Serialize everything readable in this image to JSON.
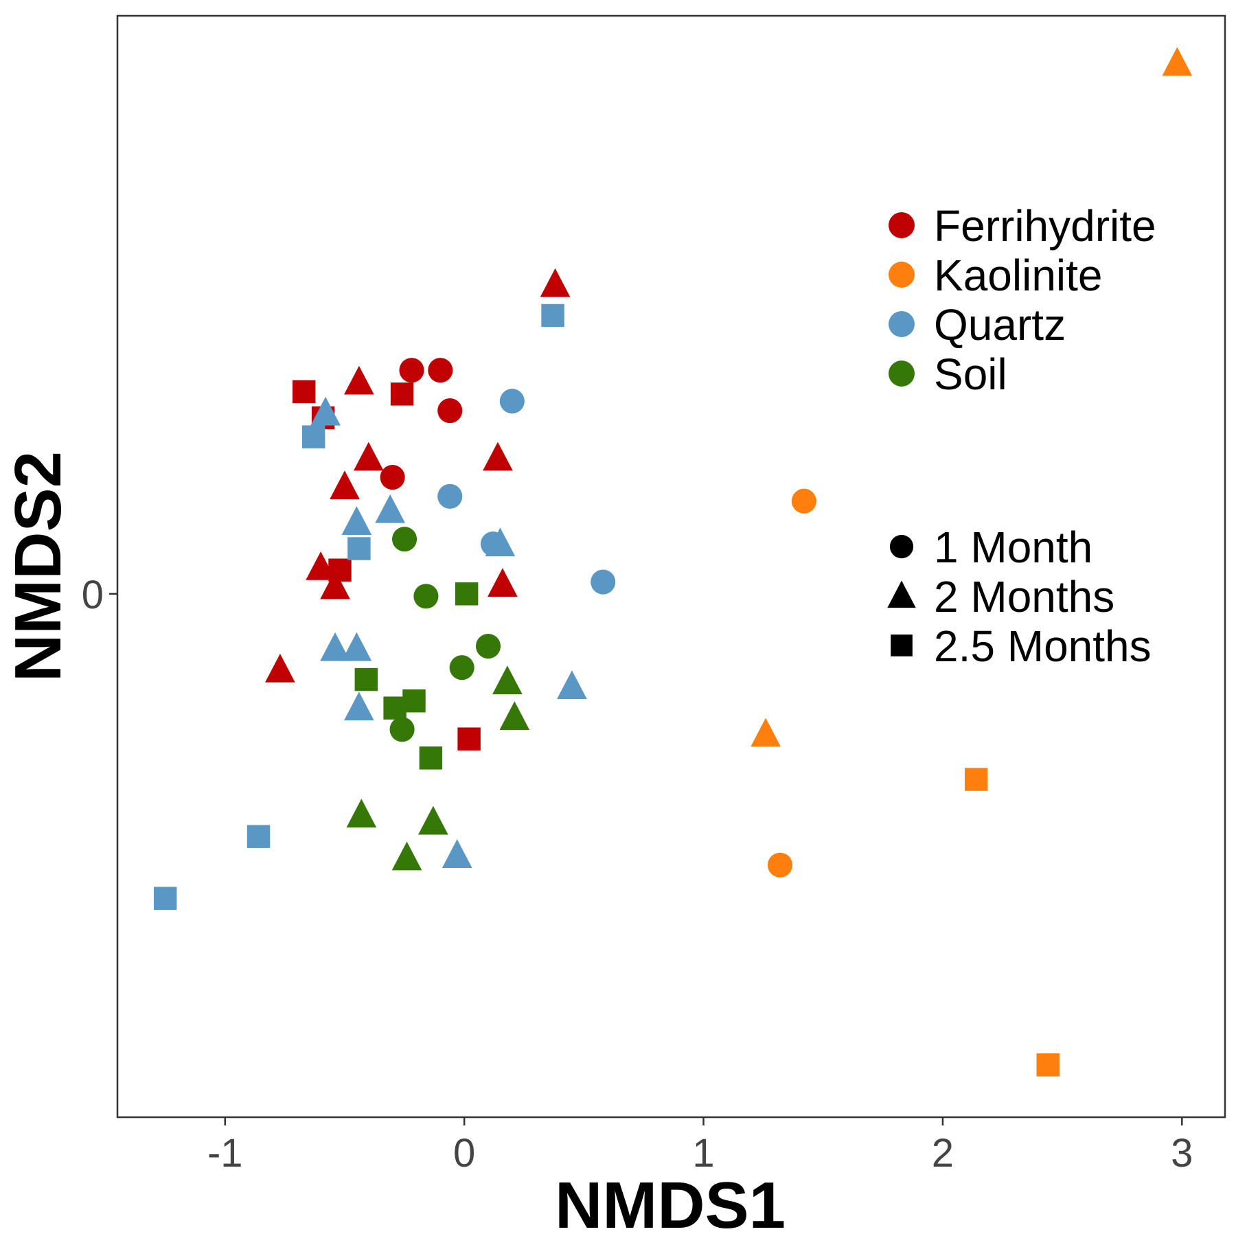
{
  "chart_data": {
    "type": "scatter",
    "title": "",
    "xlabel": "NMDS1",
    "ylabel": "NMDS2",
    "xlim": [
      -1.45,
      3.18
    ],
    "ylim": [
      -2.2,
      2.43
    ],
    "x_ticks": [
      -1,
      0,
      1,
      2,
      3
    ],
    "x_tick_labels": [
      "-1",
      "0",
      "1",
      "2",
      "3"
    ],
    "y_ticks": [
      0
    ],
    "y_tick_labels": [
      "0"
    ],
    "grid": false,
    "legend_placement": "right",
    "color_legend": [
      {
        "label": "Ferrihydrite",
        "color": "#c00000"
      },
      {
        "label": "Kaolinite",
        "color": "#ff7f0e"
      },
      {
        "label": "Quartz",
        "color": "#5b97c5"
      },
      {
        "label": "Soil",
        "color": "#367807"
      }
    ],
    "shape_legend": [
      {
        "label": "1 Month",
        "shape": "circle"
      },
      {
        "label": "2 Months",
        "shape": "triangle"
      },
      {
        "label": "2.5 Months",
        "shape": "square"
      }
    ],
    "series": [
      {
        "color_key": "Ferrihydrite",
        "points": [
          {
            "x": -0.22,
            "y": 0.94,
            "shape": "circle"
          },
          {
            "x": -0.1,
            "y": 0.94,
            "shape": "circle"
          },
          {
            "x": -0.06,
            "y": 0.77,
            "shape": "circle"
          },
          {
            "x": -0.3,
            "y": 0.49,
            "shape": "circle"
          },
          {
            "x": 0.38,
            "y": 1.3,
            "shape": "triangle"
          },
          {
            "x": -0.44,
            "y": 0.89,
            "shape": "triangle"
          },
          {
            "x": -0.4,
            "y": 0.57,
            "shape": "triangle"
          },
          {
            "x": 0.14,
            "y": 0.57,
            "shape": "triangle"
          },
          {
            "x": -0.5,
            "y": 0.45,
            "shape": "triangle"
          },
          {
            "x": -0.6,
            "y": 0.11,
            "shape": "triangle"
          },
          {
            "x": -0.54,
            "y": 0.03,
            "shape": "triangle"
          },
          {
            "x": 0.16,
            "y": 0.04,
            "shape": "triangle"
          },
          {
            "x": -0.77,
            "y": -0.32,
            "shape": "triangle"
          },
          {
            "x": -0.67,
            "y": 0.85,
            "shape": "square"
          },
          {
            "x": -0.26,
            "y": 0.84,
            "shape": "square"
          },
          {
            "x": -0.59,
            "y": 0.74,
            "shape": "square"
          },
          {
            "x": -0.52,
            "y": 0.1,
            "shape": "square"
          },
          {
            "x": 0.02,
            "y": -0.61,
            "shape": "square"
          }
        ]
      },
      {
        "color_key": "Kaolinite",
        "points": [
          {
            "x": 1.42,
            "y": 0.39,
            "shape": "circle"
          },
          {
            "x": 1.32,
            "y": -1.14,
            "shape": "circle"
          },
          {
            "x": 2.98,
            "y": 2.23,
            "shape": "triangle"
          },
          {
            "x": 1.26,
            "y": -0.59,
            "shape": "triangle"
          },
          {
            "x": 2.14,
            "y": -0.78,
            "shape": "square"
          },
          {
            "x": 2.44,
            "y": -1.98,
            "shape": "square"
          }
        ]
      },
      {
        "color_key": "Quartz",
        "points": [
          {
            "x": 0.2,
            "y": 0.81,
            "shape": "circle"
          },
          {
            "x": -0.06,
            "y": 0.41,
            "shape": "circle"
          },
          {
            "x": 0.12,
            "y": 0.21,
            "shape": "circle"
          },
          {
            "x": 0.58,
            "y": 0.05,
            "shape": "circle"
          },
          {
            "x": -0.58,
            "y": 0.76,
            "shape": "triangle"
          },
          {
            "x": -0.45,
            "y": 0.3,
            "shape": "triangle"
          },
          {
            "x": -0.31,
            "y": 0.35,
            "shape": "triangle"
          },
          {
            "x": 0.15,
            "y": 0.21,
            "shape": "triangle"
          },
          {
            "x": -0.54,
            "y": -0.23,
            "shape": "triangle"
          },
          {
            "x": -0.45,
            "y": -0.23,
            "shape": "triangle"
          },
          {
            "x": 0.45,
            "y": -0.39,
            "shape": "triangle"
          },
          {
            "x": -0.44,
            "y": -0.48,
            "shape": "triangle"
          },
          {
            "x": -0.03,
            "y": -1.1,
            "shape": "triangle"
          },
          {
            "x": 0.37,
            "y": 1.17,
            "shape": "square"
          },
          {
            "x": -0.63,
            "y": 0.66,
            "shape": "square"
          },
          {
            "x": -0.44,
            "y": 0.19,
            "shape": "square"
          },
          {
            "x": -0.86,
            "y": -1.02,
            "shape": "square"
          },
          {
            "x": -1.25,
            "y": -1.28,
            "shape": "square"
          }
        ]
      },
      {
        "color_key": "Soil",
        "points": [
          {
            "x": -0.25,
            "y": 0.23,
            "shape": "circle"
          },
          {
            "x": -0.16,
            "y": -0.01,
            "shape": "circle"
          },
          {
            "x": 0.1,
            "y": -0.22,
            "shape": "circle"
          },
          {
            "x": -0.01,
            "y": -0.31,
            "shape": "circle"
          },
          {
            "x": -0.26,
            "y": -0.57,
            "shape": "circle"
          },
          {
            "x": 0.18,
            "y": -0.37,
            "shape": "triangle"
          },
          {
            "x": 0.21,
            "y": -0.52,
            "shape": "triangle"
          },
          {
            "x": -0.43,
            "y": -0.93,
            "shape": "triangle"
          },
          {
            "x": -0.13,
            "y": -0.96,
            "shape": "triangle"
          },
          {
            "x": -0.24,
            "y": -1.11,
            "shape": "triangle"
          },
          {
            "x": 0.01,
            "y": 0.0,
            "shape": "square"
          },
          {
            "x": -0.41,
            "y": -0.36,
            "shape": "square"
          },
          {
            "x": -0.21,
            "y": -0.45,
            "shape": "square"
          },
          {
            "x": -0.29,
            "y": -0.48,
            "shape": "square"
          },
          {
            "x": -0.14,
            "y": -0.69,
            "shape": "square"
          }
        ]
      }
    ]
  }
}
